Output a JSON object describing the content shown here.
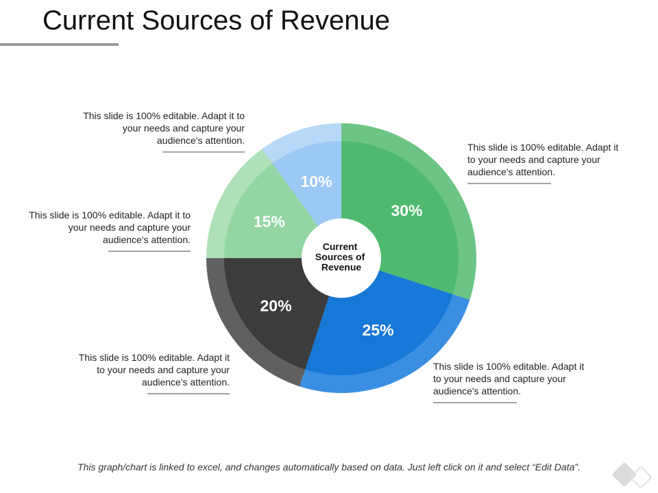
{
  "slide": {
    "title": "Current Sources of Revenue",
    "footer": "This graph/chart is linked to excel, and changes automatically based on data. Just left click on it and select “Edit Data”."
  },
  "callouts": [
    {
      "id": "top-left",
      "text": "This slide is 100% editable. Adapt it to your needs and capture your audience's attention."
    },
    {
      "id": "mid-left",
      "text": "This slide is 100% editable. Adapt it to your needs and capture your audience's attention."
    },
    {
      "id": "bottom-left",
      "text": "This slide is 100% editable. Adapt it to your needs and capture your audience's attention."
    },
    {
      "id": "top-right",
      "text": "This slide is 100% editable. Adapt it to your needs and capture your audience's attention."
    },
    {
      "id": "bottom-right",
      "text": "This slide is 100% editable. Adapt it to your needs and capture your audience's attention."
    }
  ],
  "chart_data": {
    "type": "pie",
    "center_label": [
      "Current",
      "Sources of",
      "Revenue"
    ],
    "slices": [
      {
        "label": "30%",
        "value": 30,
        "color": "#4fba6f",
        "ring_color": "#6cc585"
      },
      {
        "label": "25%",
        "value": 25,
        "color": "#1778d8",
        "ring_color": "#3b8fe3"
      },
      {
        "label": "20%",
        "value": 20,
        "color": "#3c3c3c",
        "ring_color": "#606060"
      },
      {
        "label": "15%",
        "value": 15,
        "color": "#93d6a3",
        "ring_color": "#aee0b9"
      },
      {
        "label": "10%",
        "value": 10,
        "color": "#9cc8f5",
        "ring_color": "#b8d8f8"
      }
    ]
  }
}
